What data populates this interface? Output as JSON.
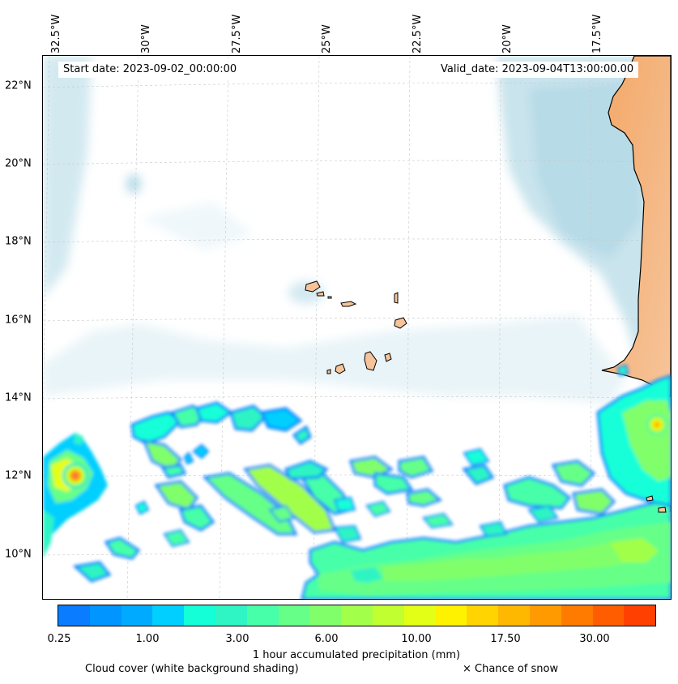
{
  "map": {
    "start_date": "Start date: 2023-09-02_00:00:00",
    "valid_date": "Valid_date: 2023-09-04T13:00:00.00",
    "lon_labels": [
      "32.5°W",
      "30°W",
      "27.5°W",
      "25°W",
      "22.5°W",
      "20°W",
      "17.5°W"
    ],
    "lat_labels": [
      "22°N",
      "20°N",
      "18°N",
      "16°N",
      "14°N",
      "12°N",
      "10°N"
    ],
    "colors": {
      "land": "#f5c6a0",
      "land_dark": "#f0a060",
      "cloud": "#a9d4e2",
      "coast": "#000000"
    }
  },
  "colorbar": {
    "label": "1 hour accumulated precipitation (mm)",
    "ticks": [
      "0.25",
      "1.00",
      "3.00",
      "6.00",
      "10.00",
      "17.50",
      "30.00"
    ],
    "colors": [
      "#0a7cff",
      "#0095ff",
      "#00abff",
      "#00cfff",
      "#14ffd8",
      "#2ff4c4",
      "#47ffa8",
      "#66ff88",
      "#80ff6a",
      "#a2ff4a",
      "#c2ff30",
      "#e4ff16",
      "#fff200",
      "#ffd400",
      "#ffb800",
      "#ff9b00",
      "#ff7b00",
      "#ff5d00",
      "#ff4000"
    ]
  },
  "legend": {
    "cloud": "Cloud cover (white background shading)",
    "snow": "× Chance of snow"
  }
}
